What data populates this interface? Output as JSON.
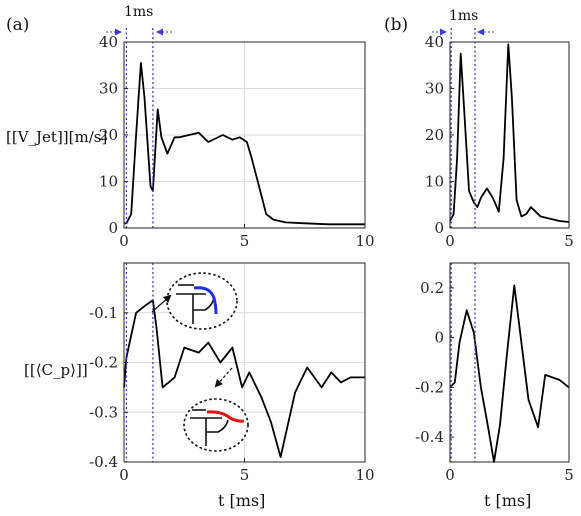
{
  "figure": {
    "panel_a": "(a)",
    "panel_b": "(b)",
    "ylabel_top": "[[V_Jet]][m/s]",
    "ylabel_bottom": "[[⟨C_p⟩]]",
    "xlabel": "t [ms]",
    "marker_label": "1ms",
    "colors": {
      "series": "#000000",
      "marker": "#3a3ad8",
      "inset_blue": "#1f2ee0",
      "inset_red": "#e01414"
    }
  },
  "chart_data": [
    {
      "id": "a-top",
      "type": "line",
      "panel": "(a)",
      "ylabel": "[[V_Jet]][m/s]",
      "xlim": [
        0,
        10
      ],
      "ylim": [
        0,
        40
      ],
      "xticks": [
        0,
        5,
        10
      ],
      "yticks": [
        0,
        10,
        20,
        30,
        40
      ],
      "grid": true,
      "marker_lines_x": [
        0.1,
        1.2
      ],
      "marker_label": "1ms",
      "series": [
        {
          "x": [
            0,
            0.1,
            0.3,
            0.5,
            0.7,
            0.85,
            1.1,
            1.2,
            1.4,
            1.55,
            1.8,
            2.1,
            2.3,
            2.7,
            3.1,
            3.5,
            4.1,
            4.5,
            4.8,
            5.1,
            5.3,
            5.6,
            5.9,
            6.2,
            6.7,
            7.5,
            8.5,
            9.5,
            10
          ],
          "y": [
            1,
            1,
            3,
            20,
            35.5,
            28,
            9,
            8,
            25.5,
            19.5,
            16,
            19.5,
            19.5,
            20,
            20.5,
            18.5,
            20,
            19,
            19.5,
            18.5,
            15,
            9,
            3,
            1.8,
            1.2,
            1,
            0.8,
            0.8,
            0.8
          ]
        }
      ]
    },
    {
      "id": "a-bottom",
      "type": "line",
      "panel": "(a)",
      "ylabel": "[[⟨C_p⟩]]",
      "xlabel": "t [ms]",
      "xlim": [
        0,
        10
      ],
      "ylim": [
        -0.4,
        0
      ],
      "xticks": [
        0,
        5,
        10
      ],
      "yticks": [
        -0.4,
        -0.3,
        -0.2,
        -0.1
      ],
      "grid": true,
      "marker_lines_x": [
        0.1,
        1.2
      ],
      "series": [
        {
          "x": [
            0,
            0.1,
            0.5,
            0.9,
            1.2,
            1.35,
            1.6,
            2.1,
            2.5,
            3.1,
            3.5,
            4.0,
            4.5,
            4.9,
            5.2,
            5.7,
            6.1,
            6.5,
            7.1,
            7.6,
            8.2,
            8.6,
            9.0,
            9.4,
            10
          ],
          "y": [
            -0.25,
            -0.19,
            -0.1,
            -0.085,
            -0.075,
            -0.13,
            -0.25,
            -0.23,
            -0.17,
            -0.18,
            -0.16,
            -0.2,
            -0.17,
            -0.25,
            -0.22,
            -0.27,
            -0.32,
            -0.39,
            -0.26,
            -0.21,
            -0.25,
            -0.22,
            -0.24,
            -0.23,
            -0.23
          ]
        }
      ]
    },
    {
      "id": "b-top",
      "type": "line",
      "panel": "(b)",
      "xlim": [
        0,
        5
      ],
      "ylim": [
        0,
        40
      ],
      "xticks": [
        0,
        5
      ],
      "yticks": [
        0,
        10,
        20,
        30,
        40
      ],
      "grid": false,
      "marker_lines_x": [
        0.05,
        1.05
      ],
      "marker_label": "1ms",
      "series": [
        {
          "x": [
            0,
            0.15,
            0.3,
            0.45,
            0.6,
            0.8,
            1.0,
            1.15,
            1.3,
            1.55,
            1.8,
            2.05,
            2.25,
            2.45,
            2.6,
            2.8,
            3.0,
            3.2,
            3.4,
            3.6,
            3.8,
            4.2,
            4.6,
            5.0
          ],
          "y": [
            1.5,
            3,
            15,
            37.5,
            25,
            8,
            5.5,
            4.5,
            6.5,
            8.5,
            6.5,
            3.5,
            15,
            39.5,
            28,
            6,
            2.5,
            3,
            4.5,
            3.5,
            2.5,
            2,
            1.5,
            1.3
          ]
        }
      ]
    },
    {
      "id": "b-bottom",
      "type": "line",
      "panel": "(b)",
      "xlabel": "t [ms]",
      "xlim": [
        0,
        5
      ],
      "ylim": [
        -0.5,
        0.3
      ],
      "xticks": [
        0,
        5
      ],
      "yticks": [
        -0.4,
        -0.2,
        0,
        0.2
      ],
      "grid": false,
      "marker_lines_x": [
        0.05,
        1.05
      ],
      "series": [
        {
          "x": [
            0,
            0.2,
            0.4,
            0.7,
            1.0,
            1.3,
            1.6,
            1.85,
            2.1,
            2.4,
            2.7,
            3.0,
            3.3,
            3.7,
            4.0,
            4.3,
            4.6,
            5.0
          ],
          "y": [
            -0.2,
            -0.18,
            -0.02,
            0.11,
            0.02,
            -0.2,
            -0.36,
            -0.5,
            -0.35,
            -0.06,
            0.21,
            -0.02,
            -0.25,
            -0.36,
            -0.15,
            -0.16,
            -0.17,
            -0.2
          ]
        }
      ]
    }
  ]
}
